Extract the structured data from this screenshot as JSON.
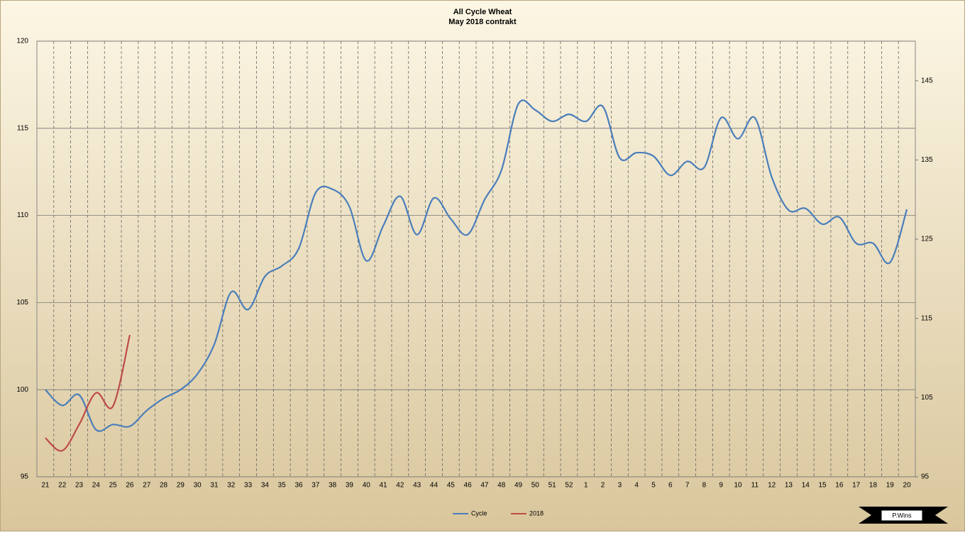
{
  "chart_data": {
    "type": "line",
    "title": "All Cycle Wheat",
    "subtitle": "May 2018 contrakt",
    "categories": [
      "21",
      "22",
      "23",
      "24",
      "25",
      "26",
      "27",
      "28",
      "29",
      "30",
      "31",
      "32",
      "33",
      "34",
      "35",
      "36",
      "37",
      "38",
      "39",
      "40",
      "41",
      "42",
      "43",
      "44",
      "45",
      "46",
      "47",
      "48",
      "49",
      "50",
      "51",
      "52",
      "1",
      "2",
      "3",
      "4",
      "5",
      "6",
      "7",
      "8",
      "9",
      "10",
      "11",
      "12",
      "13",
      "14",
      "15",
      "16",
      "17",
      "18",
      "19",
      "20"
    ],
    "series": [
      {
        "name": "Cycle",
        "color": "#4a7ebb",
        "values": [
          100.0,
          99.1,
          99.7,
          97.7,
          98.0,
          97.9,
          98.8,
          99.5,
          100.0,
          100.9,
          102.6,
          105.6,
          104.6,
          106.5,
          107.1,
          108.1,
          111.3,
          111.5,
          110.5,
          107.4,
          109.4,
          111.1,
          108.9,
          111.0,
          109.8,
          108.9,
          110.9,
          112.6,
          116.4,
          116.05,
          115.4,
          115.8,
          115.4,
          116.25,
          113.3,
          113.6,
          113.4,
          112.3,
          113.1,
          112.75,
          115.6,
          114.4,
          115.6,
          112.2,
          110.3,
          110.4,
          109.5,
          109.9,
          108.4,
          108.4,
          107.3,
          110.35
        ]
      },
      {
        "name": "2018",
        "color": "#be4b48",
        "axis": "y2",
        "values": [
          99.9,
          98.3,
          101.6,
          105.6,
          103.9,
          112.9,
          null,
          null,
          null,
          null,
          null,
          null,
          null,
          null,
          null,
          null,
          null,
          null,
          null,
          null,
          null,
          null,
          null,
          null,
          null,
          null,
          null,
          null,
          null,
          null,
          null,
          null,
          null,
          null,
          null,
          null,
          null,
          null,
          null,
          null,
          null,
          null,
          null,
          null,
          null,
          null,
          null,
          null,
          null,
          null,
          null,
          null
        ]
      }
    ],
    "ylim": [
      95,
      120
    ],
    "yticks": [
      95,
      100,
      105,
      110,
      115,
      120
    ],
    "y2lim": [
      95,
      150
    ],
    "y2ticks": [
      95,
      105,
      115,
      125,
      135,
      145
    ],
    "grid": true,
    "legend": "bottom",
    "watermark": "P.Wins"
  }
}
